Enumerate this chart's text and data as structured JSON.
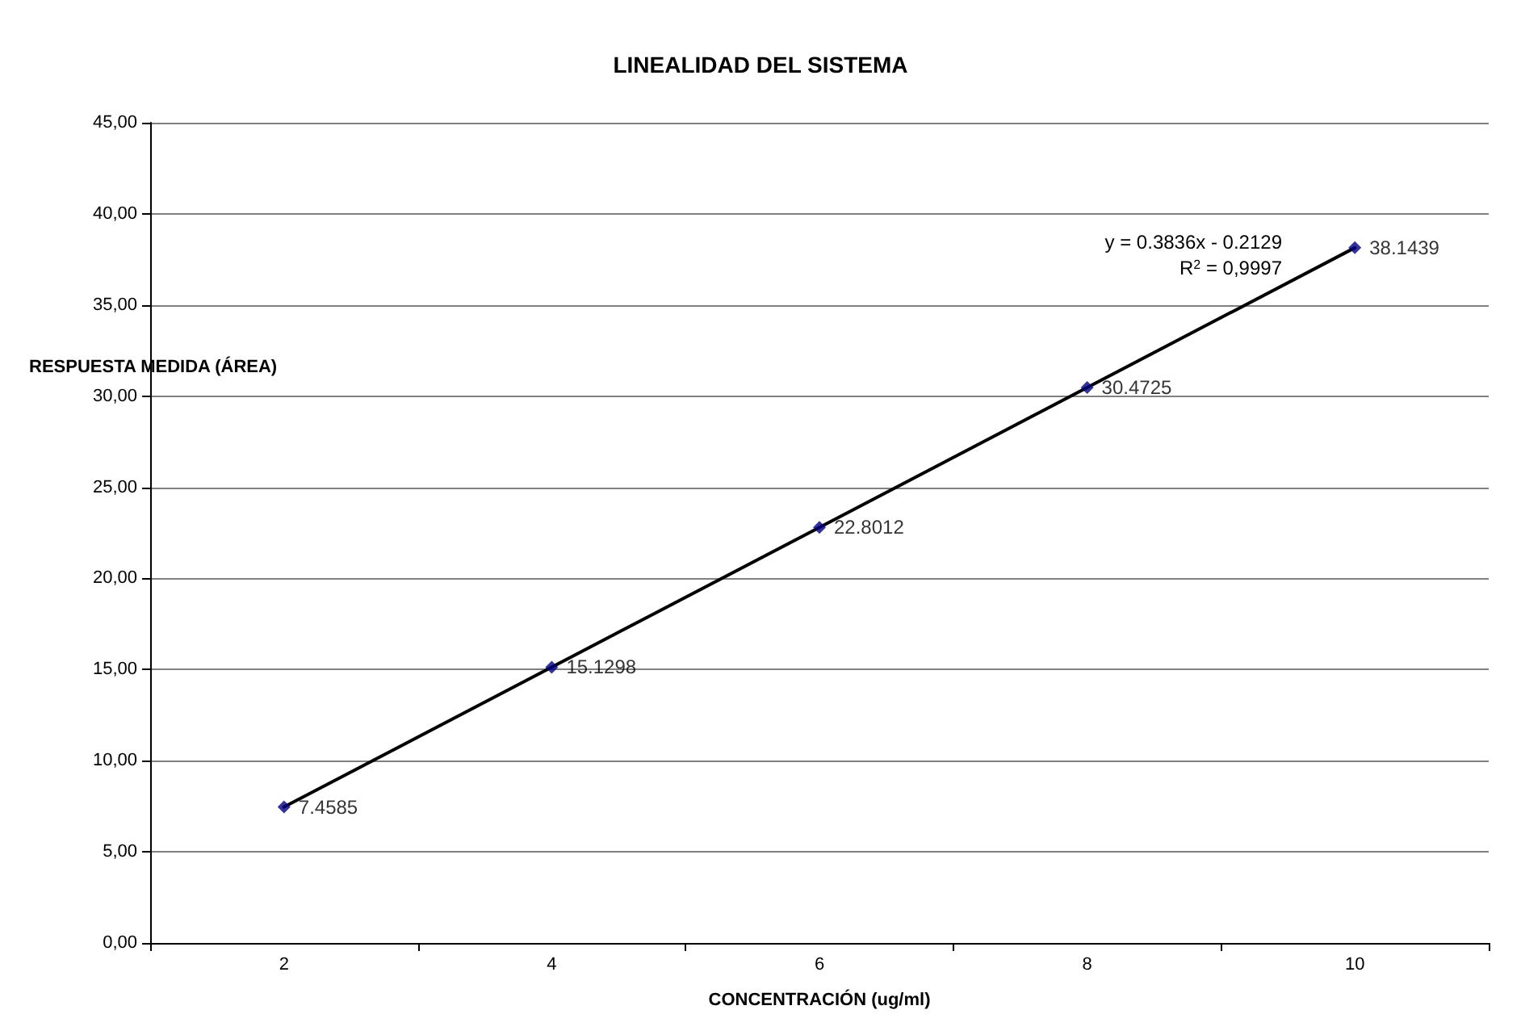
{
  "chart_data": {
    "type": "scatter",
    "title": "LINEALIDAD DEL SISTEMA",
    "xlabel": "CONCENTRACIÓN (ug/ml)",
    "ylabel": "RESPUESTA MEDIDA (ÁREA)",
    "categories": [
      "2",
      "4",
      "6",
      "8",
      "10"
    ],
    "series": [
      {
        "type": "line",
        "x": [
          "2",
          "10"
        ],
        "values": [
          7.46,
          38.14
        ],
        "value_labels": [
          null,
          null
        ],
        "color": "#000000",
        "marker": "none",
        "line_style": "solid"
      },
      {
        "values": [
          7.4585,
          15.1298,
          22.8012,
          30.4725,
          38.1439
        ],
        "color": "#000080",
        "marker": "diamond"
      }
    ],
    "data_labels": true,
    "annotations": [
      "y = 0.3836x - 0.2129",
      "R$^{2}$ = 0,9997"
    ],
    "ylim": [
      0,
      45
    ],
    "yticks": [
      {
        "value": 0,
        "label": "0,00"
      },
      {
        "value": 5,
        "label": "5,00"
      },
      {
        "value": 10,
        "label": "10,00"
      },
      {
        "value": 15,
        "label": "15,00"
      },
      {
        "value": 20,
        "label": "20,00"
      },
      {
        "value": 25,
        "label": "25,00"
      },
      {
        "value": 30,
        "label": "30,00"
      },
      {
        "value": 35,
        "label": "35,00"
      },
      {
        "value": 40,
        "label": "40,00"
      },
      {
        "value": 45,
        "label": "45,00"
      }
    ],
    "grid": "y"
  }
}
